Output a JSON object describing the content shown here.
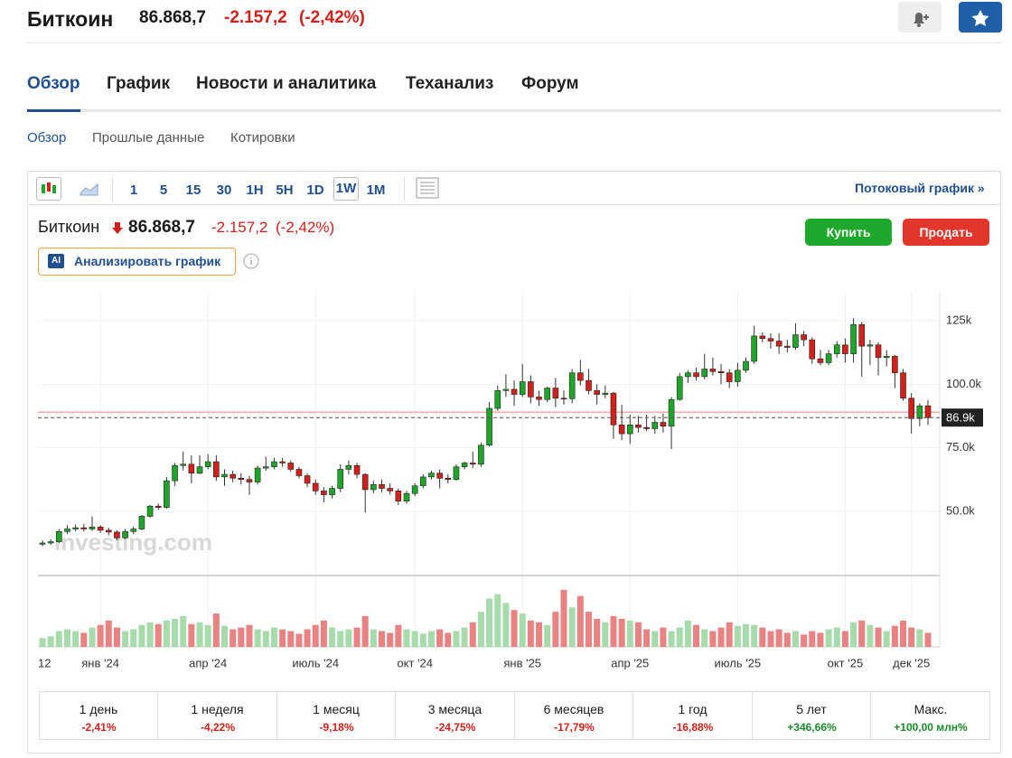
{
  "header": {
    "title": "Биткоин",
    "price": "86.868,7",
    "change": "-2.157,2",
    "change_pct": "(-2,42%)"
  },
  "tabs": [
    "Обзор",
    "График",
    "Новости и аналитика",
    "Теханализ",
    "Форум"
  ],
  "subtabs": [
    "Обзор",
    "Прошлые данные",
    "Котировки"
  ],
  "toolbar": {
    "intervals": [
      "1",
      "5",
      "15",
      "30",
      "1H",
      "5H",
      "1D",
      "1W",
      "1M"
    ],
    "stream_link": "Потоковый график »"
  },
  "chart_header": {
    "title": "Биткоин",
    "price": "86.868,7",
    "change": "-2.157,2",
    "change_pct": "(-2,42%)",
    "ai_badge": "AI",
    "analyze": "Анализировать график",
    "buy": "Купить",
    "sell": "Продать"
  },
  "chart_data": {
    "type": "candlestick",
    "watermark": "Investing.com",
    "categories": [
      "12",
      null,
      null,
      null,
      null,
      null,
      null,
      "янв '24",
      null,
      null,
      null,
      null,
      null,
      null,
      null,
      null,
      null,
      null,
      null,
      null,
      "апр '24",
      null,
      null,
      null,
      null,
      null,
      null,
      null,
      null,
      null,
      null,
      null,
      null,
      "июль '24",
      null,
      null,
      null,
      null,
      null,
      null,
      null,
      null,
      null,
      null,
      null,
      "окт '24",
      null,
      null,
      null,
      null,
      null,
      null,
      null,
      null,
      null,
      null,
      null,
      null,
      "янв '25",
      null,
      null,
      null,
      null,
      null,
      null,
      null,
      null,
      null,
      null,
      null,
      null,
      "апр '25",
      null,
      null,
      null,
      null,
      null,
      null,
      null,
      null,
      null,
      null,
      null,
      null,
      "июль '25",
      null,
      null,
      null,
      null,
      null,
      null,
      null,
      null,
      null,
      null,
      null,
      null,
      "окт '25",
      null,
      null,
      null,
      null,
      null,
      null,
      null,
      "дек '25",
      null,
      null
    ],
    "open": [
      37000,
      37500,
      38000,
      42000,
      43000,
      43500,
      43000,
      43800,
      42500,
      41800,
      39500,
      42000,
      43000,
      48000,
      52000,
      51500,
      62000,
      68000,
      68500,
      65000,
      67500,
      69500,
      63500,
      64500,
      63000,
      62500,
      61500,
      67000,
      67500,
      69500,
      69000,
      66500,
      64000,
      61000,
      58000,
      56500,
      59000,
      66500,
      68000,
      64500,
      58500,
      60500,
      59000,
      58000,
      54000,
      57000,
      60000,
      63500,
      65000,
      63000,
      62500,
      67500,
      69000,
      68500,
      76000,
      90500,
      97500,
      98000,
      96000,
      101000,
      95000,
      94000,
      98500,
      94500,
      94300,
      104500,
      101500,
      97500,
      96000,
      96500,
      84000,
      80500,
      84000,
      83000,
      82500,
      85000,
      83500,
      94000,
      103000,
      104500,
      103000,
      106000,
      105000,
      104500,
      101000,
      105500,
      109000,
      119000,
      118000,
      117000,
      115000,
      114500,
      119500,
      117500,
      110000,
      108500,
      112000,
      115500,
      112000,
      123500,
      115000,
      115500,
      110500,
      111000,
      104500,
      94500,
      86500,
      91500
    ],
    "high": [
      38500,
      39000,
      43000,
      44500,
      44800,
      45000,
      48000,
      44500,
      43500,
      42500,
      43000,
      44000,
      48500,
      52500,
      53000,
      63500,
      69000,
      73500,
      72000,
      72000,
      72500,
      72000,
      66500,
      66000,
      65000,
      64000,
      68000,
      71500,
      71000,
      71000,
      70000,
      67500,
      65000,
      62500,
      59500,
      60000,
      68500,
      70000,
      69000,
      65000,
      62000,
      62500,
      61000,
      59000,
      58000,
      61000,
      64500,
      66000,
      66500,
      64500,
      68500,
      69500,
      73500,
      77000,
      93000,
      99500,
      104000,
      101500,
      108000,
      103500,
      97500,
      99000,
      102500,
      97500,
      106000,
      109500,
      106000,
      100000,
      99500,
      97000,
      92000,
      88000,
      87500,
      88000,
      87500,
      88500,
      95000,
      104500,
      105500,
      106500,
      112000,
      110500,
      108000,
      106000,
      108500,
      110500,
      123000,
      120500,
      120000,
      120000,
      117500,
      124000,
      121000,
      118500,
      113500,
      113500,
      117000,
      118000,
      126000,
      124500,
      117500,
      116500,
      113500,
      111500,
      106000,
      96500,
      92500,
      93800
    ],
    "low": [
      36200,
      36800,
      37500,
      41000,
      42000,
      42000,
      42200,
      41500,
      40500,
      38500,
      39000,
      41000,
      42500,
      47500,
      50500,
      51000,
      60000,
      66000,
      61000,
      64500,
      66500,
      62000,
      60000,
      61500,
      60500,
      56500,
      60500,
      66000,
      66500,
      67500,
      65500,
      63000,
      59500,
      56500,
      53500,
      55000,
      57500,
      64500,
      63000,
      49500,
      57000,
      57500,
      56500,
      52500,
      53000,
      56000,
      59000,
      62500,
      59000,
      61000,
      62000,
      66500,
      67000,
      67500,
      75500,
      89500,
      95000,
      91500,
      95000,
      92500,
      91500,
      93000,
      91000,
      92000,
      92500,
      99500,
      96000,
      92000,
      94500,
      78500,
      78000,
      76500,
      81000,
      81500,
      80500,
      81000,
      74500,
      93500,
      100500,
      101500,
      102000,
      103500,
      100000,
      98500,
      99000,
      104500,
      108000,
      116500,
      114000,
      112000,
      112500,
      113500,
      115000,
      108000,
      107500,
      107500,
      110500,
      108500,
      108500,
      103000,
      107500,
      103500,
      107000,
      98500,
      93500,
      80500,
      83500,
      84000
    ],
    "close": [
      37500,
      38000,
      42000,
      43000,
      43500,
      43000,
      43800,
      42500,
      41800,
      39500,
      42000,
      43000,
      48000,
      52000,
      51500,
      62000,
      68000,
      68500,
      65000,
      67500,
      69500,
      63500,
      64500,
      63000,
      62500,
      61500,
      67000,
      67500,
      69500,
      69000,
      66500,
      64000,
      61000,
      58000,
      56500,
      59000,
      66500,
      68000,
      64500,
      58500,
      60500,
      59000,
      58000,
      54000,
      57000,
      60000,
      63500,
      65000,
      63000,
      62500,
      67500,
      69000,
      68500,
      76000,
      90500,
      97500,
      98000,
      96000,
      101000,
      95000,
      94000,
      98500,
      94500,
      94300,
      104500,
      101500,
      97500,
      96000,
      96500,
      84000,
      80500,
      84000,
      83000,
      82500,
      85000,
      83500,
      94000,
      103000,
      104500,
      103000,
      106000,
      105000,
      104500,
      101000,
      105500,
      109000,
      119000,
      118000,
      117000,
      115000,
      114500,
      119500,
      117500,
      110000,
      108500,
      112000,
      115500,
      112000,
      123500,
      115000,
      115500,
      110500,
      111000,
      104500,
      94500,
      86500,
      91500,
      86868.7
    ],
    "volume": [
      10,
      12,
      18,
      20,
      18,
      16,
      22,
      25,
      30,
      22,
      18,
      20,
      25,
      28,
      26,
      30,
      32,
      35,
      26,
      28,
      25,
      38,
      24,
      20,
      22,
      25,
      20,
      18,
      22,
      20,
      18,
      15,
      20,
      25,
      30,
      22,
      18,
      20,
      22,
      35,
      20,
      18,
      16,
      25,
      20,
      18,
      15,
      18,
      20,
      16,
      18,
      22,
      28,
      40,
      55,
      60,
      50,
      42,
      38,
      30,
      28,
      25,
      40,
      65,
      45,
      58,
      40,
      32,
      28,
      35,
      32,
      30,
      28,
      20,
      18,
      22,
      18,
      22,
      30,
      25,
      20,
      18,
      22,
      28,
      24,
      26,
      25,
      22,
      18,
      20,
      16,
      18,
      14,
      18,
      16,
      20,
      22,
      18,
      28,
      30,
      25,
      22,
      18,
      24,
      30,
      22,
      20,
      16
    ],
    "vlim": [
      0,
      70
    ],
    "ylim": [
      25400,
      136400
    ],
    "yticks": [
      {
        "value": 50000,
        "label": "50.0k"
      },
      {
        "value": 75000,
        "label": "75.0k"
      },
      {
        "value": 100000,
        "label": "100.0k"
      },
      {
        "value": 125000,
        "label": "125k"
      }
    ],
    "last_price": {
      "value": 86868.7,
      "label": "86.9k"
    },
    "prev_close": 89025.9,
    "grid": true,
    "up_color": "#1fa62a",
    "down_color": "#d2201b",
    "up_volume_color": "#a8dbab",
    "down_volume_color": "#e98283"
  },
  "periods": [
    {
      "label": "1 день",
      "value": "-2,41%"
    },
    {
      "label": "1 неделя",
      "value": "-4,22%"
    },
    {
      "label": "1 месяц",
      "value": "-9,18%"
    },
    {
      "label": "3 месяца",
      "value": "-24,75%"
    },
    {
      "label": "6 месяцев",
      "value": "-17,79%"
    },
    {
      "label": "1 год",
      "value": "-16,88%"
    },
    {
      "label": "5 лет",
      "value": "+346,66%"
    },
    {
      "label": "Макс.",
      "value": "+100,00 млн%"
    }
  ]
}
